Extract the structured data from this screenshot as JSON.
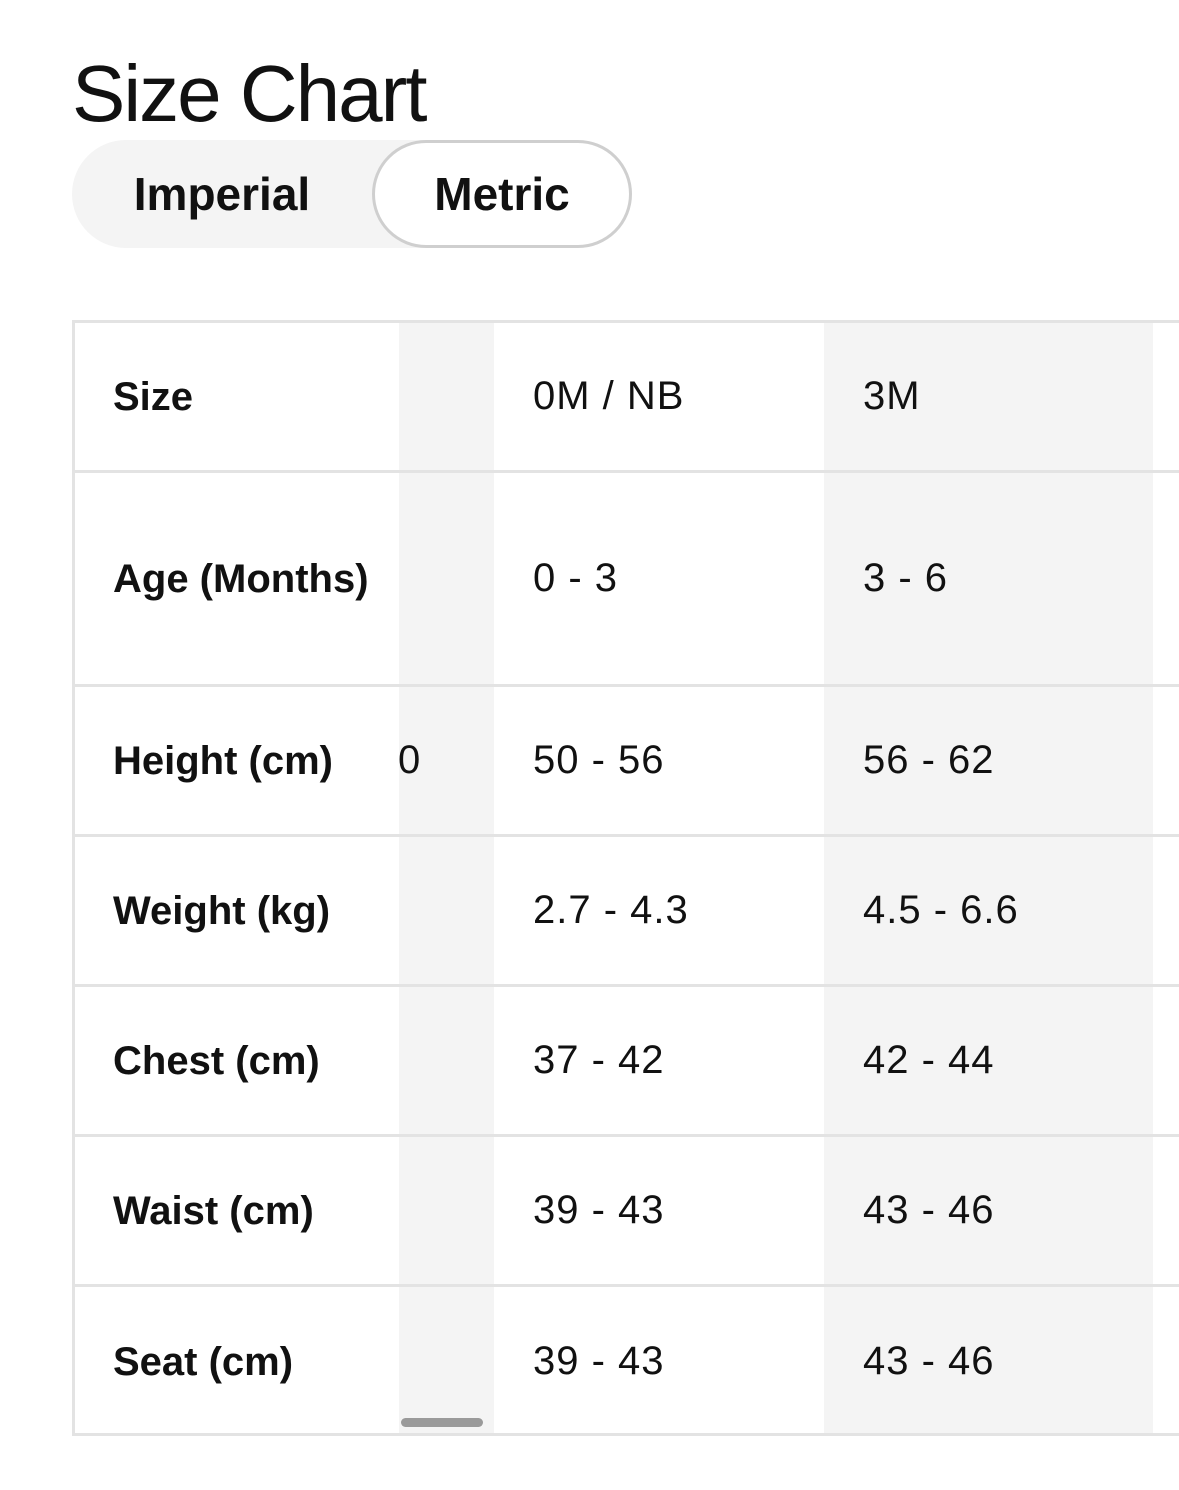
{
  "title": "Size Chart",
  "units_toggle": {
    "options": [
      "Imperial",
      "Metric"
    ],
    "selected": "Metric"
  },
  "table": {
    "columns": [
      "0M / NB",
      "3M"
    ],
    "partial_column_visible_text": [
      "",
      "",
      "0",
      "",
      "",
      "",
      ""
    ],
    "rows": [
      {
        "label": "Size",
        "values": [
          "0M / NB",
          "3M"
        ]
      },
      {
        "label": "Age (Months)",
        "values": [
          "0 - 3",
          "3 - 6"
        ]
      },
      {
        "label": "Height (cm)",
        "values": [
          "50 - 56",
          "56 - 62"
        ]
      },
      {
        "label": "Weight (kg)",
        "values": [
          "2.7 - 4.3",
          "4.5 - 6.6"
        ]
      },
      {
        "label": "Chest (cm)",
        "values": [
          "37 - 42",
          "42 - 44"
        ]
      },
      {
        "label": "Waist (cm)",
        "values": [
          "39 - 43",
          "43 - 46"
        ]
      },
      {
        "label": "Seat (cm)",
        "values": [
          "39 - 43",
          "43 - 46"
        ]
      }
    ]
  },
  "colors": {
    "stripe": "#f4f4f4",
    "border": "#e3e3e3",
    "scrollbar": "#9a9a9a"
  }
}
